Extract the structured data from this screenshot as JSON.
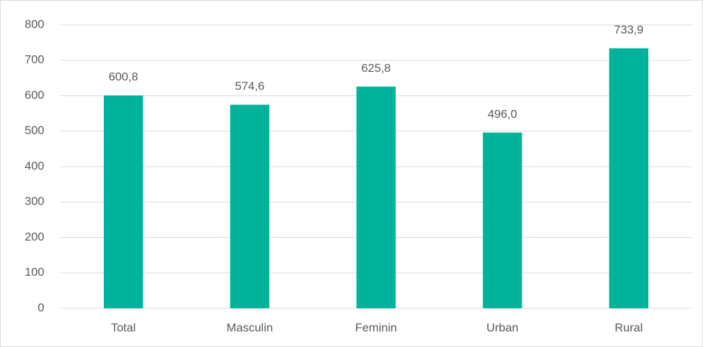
{
  "chart_data": {
    "type": "bar",
    "categories": [
      "Total",
      "Masculin",
      "Feminin",
      "Urban",
      "Rural"
    ],
    "values": [
      600.8,
      574.6,
      625.8,
      496.0,
      733.9
    ],
    "value_labels": [
      "600,8",
      "574,6",
      "625,8",
      "496,0",
      "733,9"
    ],
    "color": "#00b39a",
    "ylim": [
      0,
      800
    ],
    "yticks": [
      0,
      100,
      200,
      300,
      400,
      500,
      600,
      700,
      800
    ],
    "grid": true
  }
}
